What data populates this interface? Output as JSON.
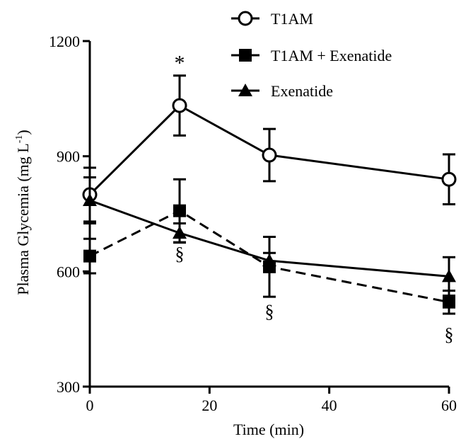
{
  "chart_data": {
    "type": "line",
    "title": "",
    "xlabel": "Time (min)",
    "ylabel_main": "Plasma Glycemia (mg L",
    "ylabel_sup": "-1",
    "ylabel_close": ")",
    "xlim": [
      0,
      60
    ],
    "ylim": [
      300,
      1200
    ],
    "xticks": [
      0,
      20,
      40,
      60
    ],
    "yticks": [
      300,
      600,
      900,
      1200
    ],
    "grid": false,
    "legend_position": "top",
    "x": [
      0,
      15,
      30,
      60
    ],
    "series": [
      {
        "name": "T1AM",
        "marker": "open-circle",
        "line": "solid",
        "values": [
          800,
          1032,
          903,
          840
        ],
        "errors": [
          70,
          78,
          68,
          65
        ]
      },
      {
        "name": "T1AM + Exenatide",
        "marker": "filled-square",
        "line": "dashed",
        "values": [
          640,
          758,
          612,
          520
        ],
        "errors": [
          45,
          82,
          78,
          30
        ]
      },
      {
        "name": "Exenatide",
        "marker": "filled-triangle",
        "line": "solid",
        "values": [
          785,
          700,
          628,
          587
        ],
        "errors": [
          60,
          25,
          20,
          50
        ]
      }
    ],
    "annotations": [
      {
        "text": "*",
        "x": 15,
        "y": 1125
      },
      {
        "text": "§",
        "x": 15,
        "y": 630
      },
      {
        "text": "§",
        "x": 30,
        "y": 480
      },
      {
        "text": "§",
        "x": 60,
        "y": 420
      }
    ]
  }
}
